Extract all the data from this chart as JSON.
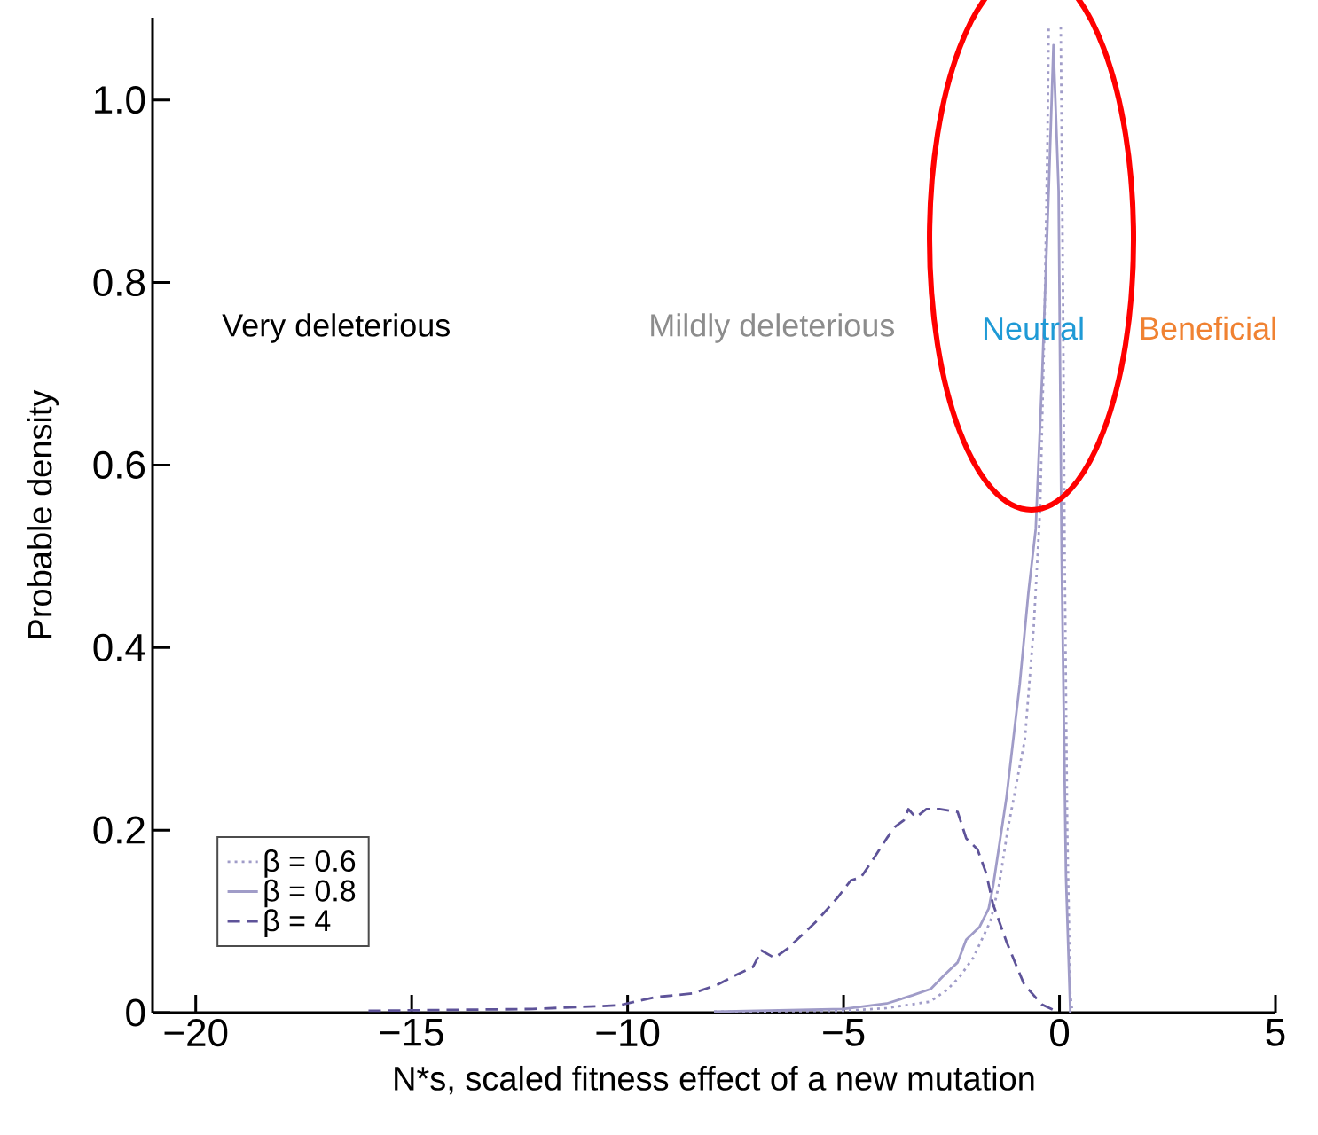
{
  "chart_data": {
    "type": "line",
    "xlabel": "N*s, scaled fitness effect of a new mutation",
    "ylabel": "Probable density",
    "xlim": [
      -21,
      5
    ],
    "ylim": [
      0,
      1.09
    ],
    "xticks": [
      {
        "value": -20,
        "label": "−20"
      },
      {
        "value": -15,
        "label": "−15"
      },
      {
        "value": -10,
        "label": "−10"
      },
      {
        "value": -5,
        "label": "−5"
      },
      0,
      5
    ],
    "yticks": [
      0,
      0.2,
      0.4,
      0.6,
      0.8,
      {
        "value": 1,
        "label": "1.0"
      }
    ],
    "legend": "bottom left",
    "series": [
      {
        "name": "β = 0.6",
        "color": "#a09cc8",
        "line_style": "dotted",
        "x": [
          -8,
          -5,
          -4,
          -3,
          -2.6,
          -2.3,
          -2.0,
          -1.8,
          -1.6,
          -1.4,
          -1.2,
          -1.0,
          -0.8,
          -0.6,
          -0.45,
          -0.35,
          -0.28,
          -0.25,
          -0.1,
          0.03,
          0.08,
          0.12,
          0.18,
          0.25,
          0.3
        ],
        "values": [
          0.001,
          0.002,
          0.005,
          0.012,
          0.025,
          0.04,
          0.06,
          0.08,
          0.1,
          0.14,
          0.2,
          0.25,
          0.3,
          0.42,
          0.55,
          0.75,
          0.95,
          1.08,
          null,
          1.08,
          0.8,
          0.5,
          0.2,
          0.02,
          0
        ]
      },
      {
        "name": "β = 0.8",
        "color": "#a09cc8",
        "line_style": "solid",
        "x": [
          -8,
          -5,
          -4,
          -3.4,
          -2.98,
          -2.67,
          -2.36,
          -2.16,
          -1.85,
          -1.64,
          -1.54,
          -1.23,
          -0.92,
          -0.72,
          -0.55,
          -0.4,
          -0.25,
          -0.14,
          -0.02,
          0.05,
          0.15,
          0.25
        ],
        "values": [
          0.001,
          0.004,
          0.01,
          0.019,
          0.026,
          0.041,
          0.055,
          0.08,
          0.094,
          0.114,
          0.138,
          0.235,
          0.36,
          0.46,
          0.53,
          0.7,
          0.9,
          1.06,
          0.9,
          0.5,
          0.15,
          0
        ]
      },
      {
        "name": "β = 4",
        "color": "#5e5399",
        "line_style": "dashed",
        "x": [
          -16,
          -12.2,
          -10.2,
          -9.35,
          -8.5,
          -7.9,
          -7.5,
          -7.1,
          -6.9,
          -6.6,
          -6.3,
          -5.65,
          -5.14,
          -4.83,
          -4.6,
          -4.3,
          -4.0,
          -3.8,
          -3.6,
          -3.5,
          -3.33,
          -3.08,
          -2.78,
          -2.36,
          -2.16,
          -1.9,
          -1.7,
          -1.54,
          -1.23,
          -0.82,
          -0.41,
          -0.06
        ],
        "values": [
          0.002,
          0.004,
          0.008,
          0.017,
          0.021,
          0.031,
          0.041,
          0.05,
          0.068,
          0.06,
          0.07,
          0.099,
          0.126,
          0.145,
          0.148,
          0.169,
          0.191,
          0.204,
          0.211,
          0.223,
          0.214,
          0.223,
          0.223,
          0.22,
          0.191,
          0.179,
          0.153,
          0.119,
          0.078,
          0.031,
          0.009,
          0.001
        ]
      }
    ],
    "annotations": [
      "Very deleterious",
      "Mildly deleterious",
      "Neutral",
      "Beneficial"
    ]
  }
}
